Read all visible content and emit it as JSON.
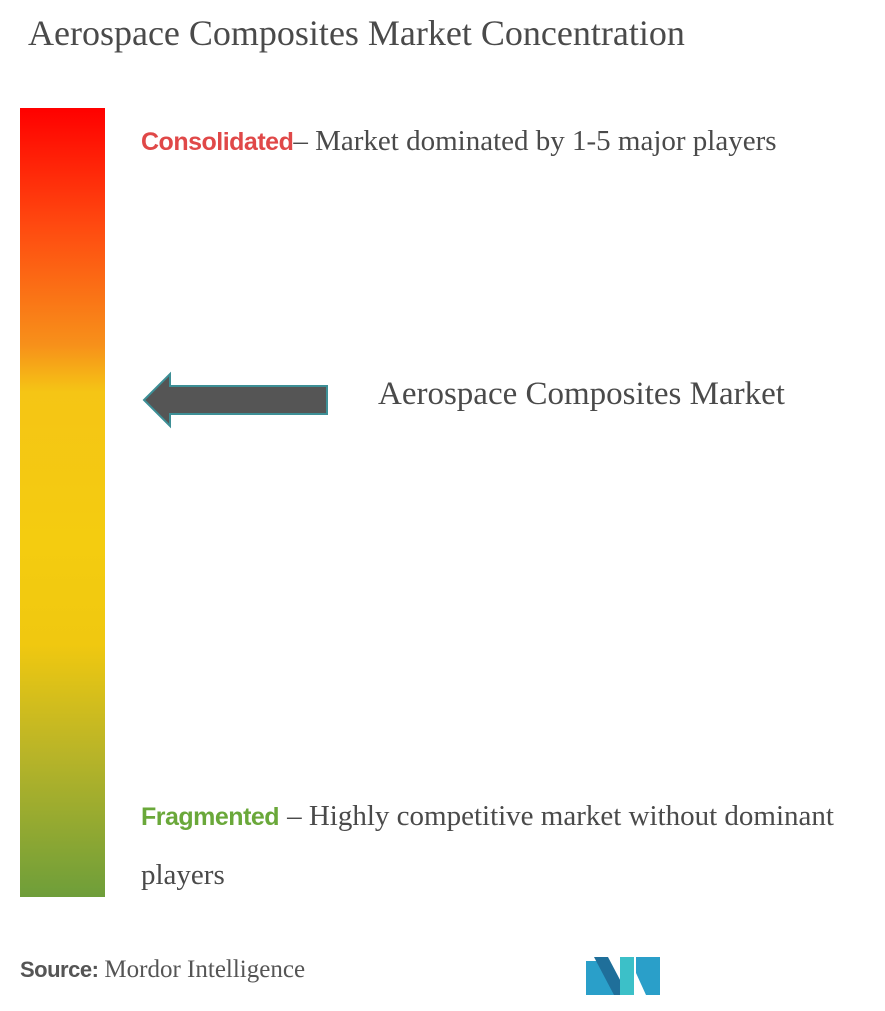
{
  "header": {
    "title": "Aerospace Composites Market Concentration"
  },
  "scale": {
    "consolidated": {
      "label": "Consolidated",
      "description": "– Market dominated by 1-5 major players"
    },
    "fragmented": {
      "label": "Fragmented",
      "description": "– Highly competitive market without dominant players"
    }
  },
  "marker": {
    "label": "Aerospace Composites Market"
  },
  "footer": {
    "source_label": "Source:",
    "source": "Mordor Intelligence"
  }
}
